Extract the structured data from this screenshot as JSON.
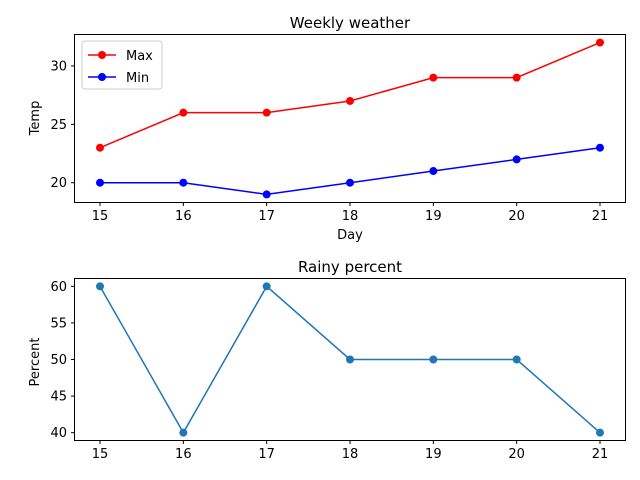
{
  "chart_data": [
    {
      "type": "line",
      "title": "Weekly weather",
      "xlabel": "Day",
      "ylabel": "Temp",
      "x": [
        15,
        16,
        17,
        18,
        19,
        20,
        21
      ],
      "xlim": [
        14.7,
        21.3
      ],
      "ylim": [
        18.35,
        32.65
      ],
      "xticks": [
        "15",
        "16",
        "17",
        "18",
        "19",
        "20",
        "21"
      ],
      "yticks": [
        20,
        25,
        30
      ],
      "grid": false,
      "legend_position": "top-left",
      "series": [
        {
          "name": "Max",
          "values": [
            23,
            26,
            26,
            27,
            29,
            29,
            32
          ],
          "color": "#ff0000"
        },
        {
          "name": "Min",
          "values": [
            20,
            20,
            19,
            20,
            21,
            22,
            23
          ],
          "color": "#0000ff"
        }
      ]
    },
    {
      "type": "line",
      "title": "Rainy percent",
      "xlabel": "",
      "ylabel": "Percent",
      "x": [
        15,
        16,
        17,
        18,
        19,
        20,
        21
      ],
      "xlim": [
        14.7,
        21.3
      ],
      "ylim": [
        39,
        61
      ],
      "xticks": [
        "15",
        "16",
        "17",
        "18",
        "19",
        "20",
        "21"
      ],
      "yticks": [
        40,
        45,
        50,
        55,
        60
      ],
      "grid": false,
      "series": [
        {
          "values": [
            60,
            40,
            60,
            50,
            50,
            50,
            40
          ],
          "color": "#1f77b4"
        }
      ]
    }
  ]
}
